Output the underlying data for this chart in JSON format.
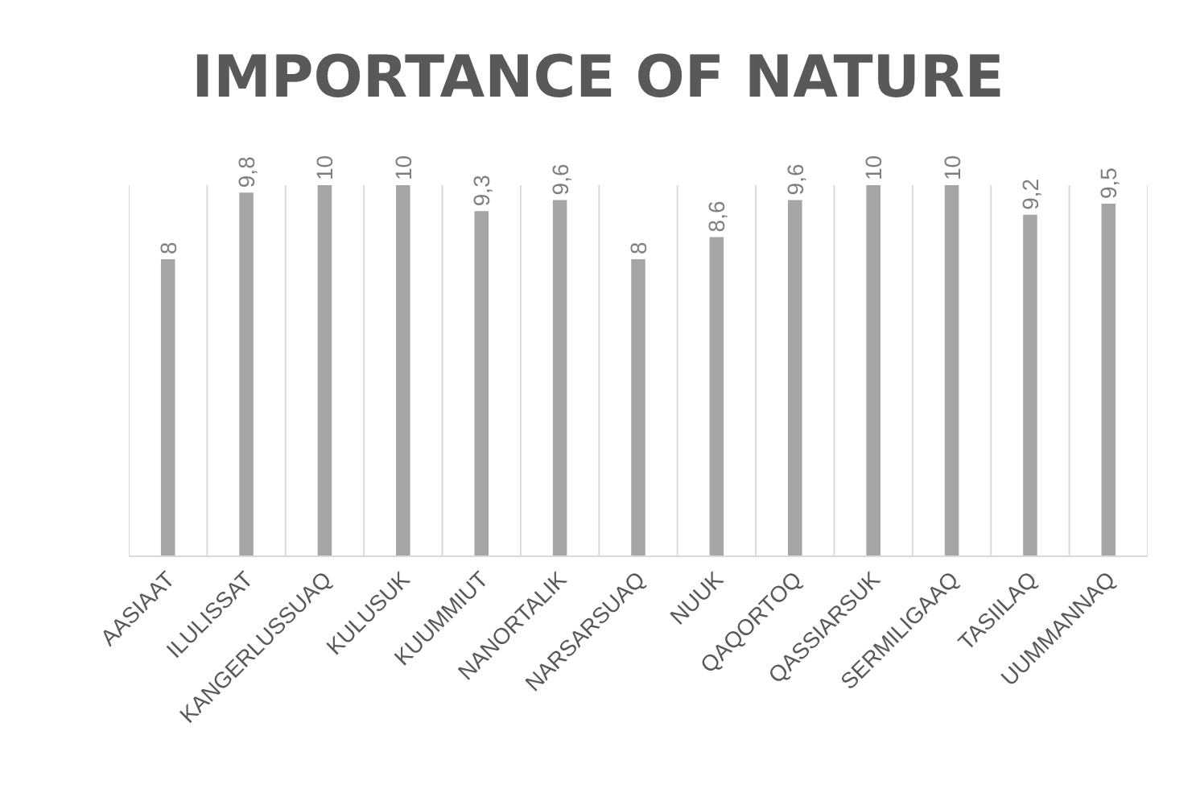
{
  "chart_data": {
    "type": "bar",
    "title": "IMPORTANCE OF NATURE",
    "categories": [
      "AASIAAT",
      "ILULISSAT",
      "KANGERLUSSUAQ",
      "KULUSUK",
      "KUUMMIUT",
      "NANORTALIK",
      "NARSARSUAQ",
      "NUUK",
      "QAQORTOQ",
      "QASSIARSUK",
      "SERMILIGAAQ",
      "TASIILAQ",
      "UUMMANNAQ"
    ],
    "values": [
      8,
      9.8,
      10,
      10,
      9.3,
      9.6,
      8,
      8.6,
      9.6,
      10,
      10,
      9.2,
      9.5
    ],
    "value_labels": [
      "8",
      "9,8",
      "10",
      "10",
      "9,3",
      "9,6",
      "8",
      "8,6",
      "9,6",
      "10",
      "10",
      "9,2",
      "9,5"
    ],
    "color": "#a5a5a5",
    "grid": "x"
  }
}
